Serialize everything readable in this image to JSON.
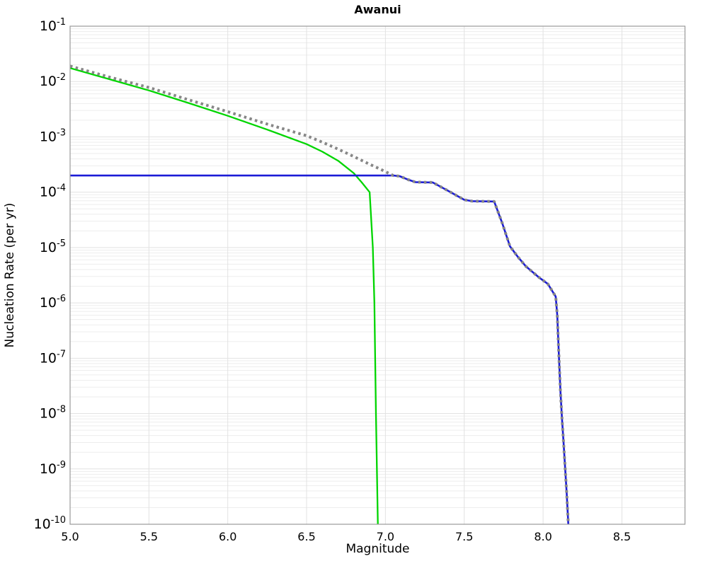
{
  "chart_data": {
    "type": "line",
    "title": "Awanui",
    "xlabel": "Magnitude",
    "ylabel": "Nucleation Rate (per yr)",
    "xlim": [
      5.0,
      8.9
    ],
    "ylim_exp": [
      -10,
      -1
    ],
    "grid": "light-gray vertical at x ticks, horizontal log decades plus minor log lines",
    "legend": "none",
    "background": "#ffffff",
    "colors": {
      "grid_minor": "#ededed",
      "grid_major": "#e2e2e2",
      "border": "#999999",
      "green_line": "#00d500",
      "blue_line": "#1c1cd6",
      "gray_dots": "#878787",
      "text": "#000000"
    },
    "x_ticks": [
      {
        "v": 5.0,
        "label": "5.0"
      },
      {
        "v": 5.5,
        "label": "5.5"
      },
      {
        "v": 6.0,
        "label": "6.0"
      },
      {
        "v": 6.5,
        "label": "6.5"
      },
      {
        "v": 7.0,
        "label": "7.0"
      },
      {
        "v": 7.5,
        "label": "7.5"
      },
      {
        "v": 8.0,
        "label": "8.0"
      },
      {
        "v": 8.5,
        "label": "8.5"
      }
    ],
    "y_ticks": [
      {
        "exp": -1
      },
      {
        "exp": -2
      },
      {
        "exp": -3
      },
      {
        "exp": -4
      },
      {
        "exp": -5
      },
      {
        "exp": -6
      },
      {
        "exp": -7
      },
      {
        "exp": -8
      },
      {
        "exp": -9
      },
      {
        "exp": -10
      }
    ],
    "series": [
      {
        "id": "green-solid",
        "color": "#00d500",
        "style": "solid",
        "width": 2.3,
        "points": [
          [
            5.0,
            0.0175
          ],
          [
            5.25,
            0.011
          ],
          [
            5.5,
            0.0069
          ],
          [
            5.75,
            0.0041
          ],
          [
            6.0,
            0.0024
          ],
          [
            6.25,
            0.00135
          ],
          [
            6.5,
            0.00074
          ],
          [
            6.6,
            0.00054
          ],
          [
            6.7,
            0.00037
          ],
          [
            6.8,
            0.00022
          ],
          [
            6.85,
            0.00015
          ],
          [
            6.9,
            0.0001
          ],
          [
            6.92,
            1e-05
          ],
          [
            6.93,
            1e-06
          ],
          [
            6.94,
            1e-08
          ],
          [
            6.952,
            1e-10
          ]
        ]
      },
      {
        "id": "blue-solid",
        "color": "#1c1cd6",
        "style": "solid",
        "width": 2.6,
        "points": [
          [
            5.0,
            0.0002
          ],
          [
            7.05,
            0.0002
          ],
          [
            7.09,
            0.000195
          ],
          [
            7.14,
            0.00017
          ],
          [
            7.19,
            0.000152
          ],
          [
            7.3,
            0.00015
          ],
          [
            7.4,
            0.000105
          ],
          [
            7.5,
            7.3e-05
          ],
          [
            7.55,
            6.9e-05
          ],
          [
            7.69,
            6.8e-05
          ],
          [
            7.74,
            2.8e-05
          ],
          [
            7.79,
            1.05e-05
          ],
          [
            7.84,
            6.8e-06
          ],
          [
            7.89,
            4.6e-06
          ],
          [
            7.97,
            2.95e-06
          ],
          [
            8.03,
            2.2e-06
          ],
          [
            8.08,
            1.3e-06
          ],
          [
            8.09,
            6e-07
          ],
          [
            8.1,
            1.2e-07
          ],
          [
            8.11,
            2.5e-08
          ],
          [
            8.12,
            8e-09
          ],
          [
            8.13,
            3e-09
          ],
          [
            8.14,
            1e-09
          ],
          [
            8.15,
            3.5e-10
          ],
          [
            8.16,
            1e-10
          ]
        ]
      },
      {
        "id": "gray-dotted",
        "color": "#878787",
        "style": "dotted",
        "width": 4,
        "points": [
          [
            5.0,
            0.019
          ],
          [
            5.25,
            0.012
          ],
          [
            5.5,
            0.0078
          ],
          [
            5.75,
            0.0047
          ],
          [
            6.0,
            0.00285
          ],
          [
            6.25,
            0.0017
          ],
          [
            6.5,
            0.00105
          ],
          [
            6.6,
            0.0008
          ],
          [
            6.7,
            0.0006
          ],
          [
            6.8,
            0.00044
          ],
          [
            6.9,
            0.00032
          ],
          [
            6.95,
            0.000275
          ],
          [
            7.0,
            0.000235
          ],
          [
            7.05,
            0.0002
          ],
          [
            7.09,
            0.000195
          ],
          [
            7.14,
            0.00017
          ],
          [
            7.19,
            0.000152
          ],
          [
            7.3,
            0.00015
          ],
          [
            7.4,
            0.000105
          ],
          [
            7.5,
            7.3e-05
          ],
          [
            7.55,
            6.9e-05
          ],
          [
            7.69,
            6.8e-05
          ],
          [
            7.74,
            2.8e-05
          ],
          [
            7.79,
            1.05e-05
          ],
          [
            7.84,
            6.8e-06
          ],
          [
            7.89,
            4.6e-06
          ],
          [
            7.97,
            2.95e-06
          ],
          [
            8.03,
            2.2e-06
          ],
          [
            8.08,
            1.3e-06
          ],
          [
            8.09,
            6e-07
          ],
          [
            8.1,
            1.2e-07
          ],
          [
            8.11,
            2.5e-08
          ],
          [
            8.12,
            8e-09
          ],
          [
            8.13,
            3e-09
          ],
          [
            8.14,
            1e-09
          ],
          [
            8.15,
            3.5e-10
          ],
          [
            8.16,
            1e-10
          ]
        ]
      }
    ]
  }
}
